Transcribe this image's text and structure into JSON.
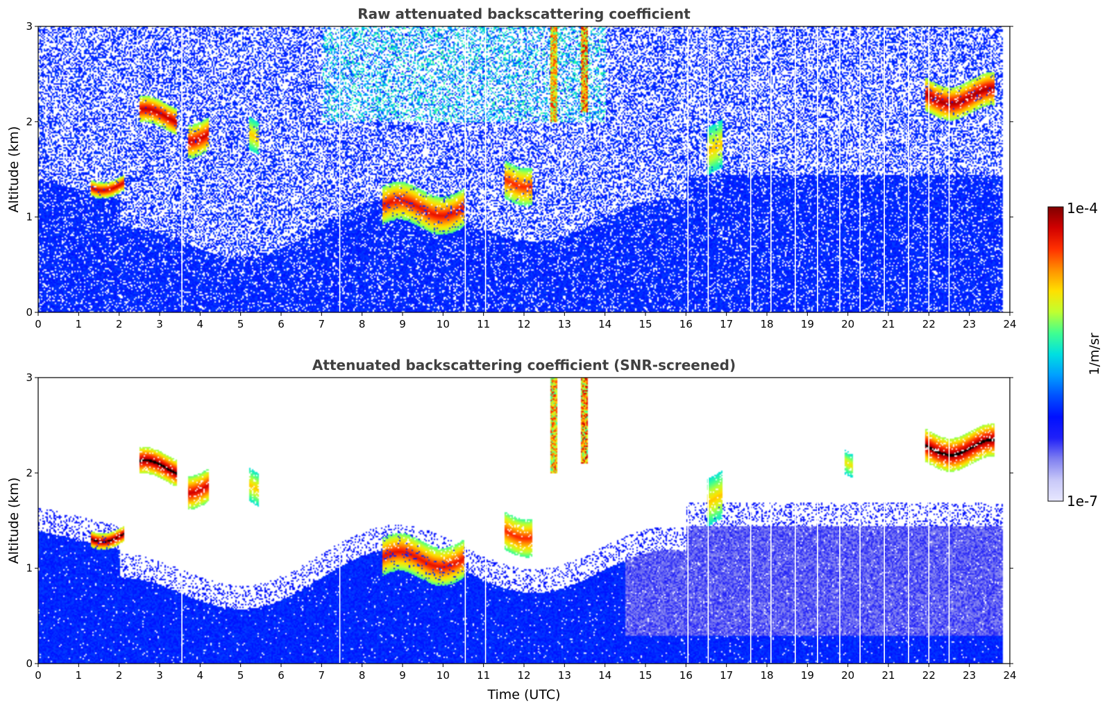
{
  "chart_data": [
    {
      "type": "heatmap",
      "title": "Raw attenuated backscattering coefficient",
      "xlabel": "",
      "ylabel": "Altitude (km)",
      "xlim": [
        0,
        24
      ],
      "ylim": [
        0,
        3
      ],
      "xticks": [
        "0",
        "1",
        "2",
        "3",
        "4",
        "5",
        "6",
        "7",
        "8",
        "9",
        "10",
        "11",
        "12",
        "13",
        "14",
        "15",
        "16",
        "17",
        "18",
        "19",
        "20",
        "21",
        "22",
        "23",
        "24"
      ],
      "yticks": [
        "0",
        "1",
        "2",
        "3"
      ],
      "noise": "high",
      "layers": [
        {
          "t0": 1.3,
          "t1": 2.1,
          "z0": 1.28,
          "z1": 1.45,
          "intensity": 0.9
        },
        {
          "t0": 2.5,
          "t1": 3.4,
          "z0": 1.92,
          "z1": 2.2,
          "intensity": 0.92
        },
        {
          "t0": 3.7,
          "t1": 4.2,
          "z0": 1.7,
          "z1": 2.05,
          "intensity": 0.9
        },
        {
          "t0": 5.2,
          "t1": 5.45,
          "z0": 1.7,
          "z1": 2.05,
          "intensity": 0.6
        },
        {
          "t0": 8.5,
          "t1": 10.5,
          "z0": 0.9,
          "z1": 1.3,
          "intensity": 0.85
        },
        {
          "t0": 11.5,
          "t1": 12.2,
          "z0": 1.2,
          "z1": 1.6,
          "intensity": 0.8
        },
        {
          "t0": 16.5,
          "t1": 16.9,
          "z0": 1.5,
          "z1": 2.0,
          "intensity": 0.6
        },
        {
          "t0": 21.9,
          "t1": 23.6,
          "z0": 2.1,
          "z1": 2.45,
          "intensity": 0.95
        }
      ],
      "plumes": [
        {
          "t0": 12.65,
          "t1": 12.8,
          "z0": 2.0,
          "z1": 3.0,
          "intensity": 0.75
        },
        {
          "t0": 13.4,
          "t1": 13.55,
          "z0": 2.1,
          "z1": 3.0,
          "intensity": 0.9
        }
      ],
      "gaps": [
        3.55,
        7.45,
        10.55,
        11.05,
        16.05,
        16.55,
        17.6,
        18.1,
        18.7,
        19.25,
        19.8,
        20.3,
        20.9,
        21.5,
        22.0,
        22.5
      ]
    },
    {
      "type": "heatmap",
      "title": "Attenuated backscattering coefficient (SNR-screened)",
      "xlabel": "Time (UTC)",
      "ylabel": "Altitude (km)",
      "xlim": [
        0,
        24
      ],
      "ylim": [
        0,
        3
      ],
      "xticks": [
        "0",
        "1",
        "2",
        "3",
        "4",
        "5",
        "6",
        "7",
        "8",
        "9",
        "10",
        "11",
        "12",
        "13",
        "14",
        "15",
        "16",
        "17",
        "18",
        "19",
        "20",
        "21",
        "22",
        "23",
        "24"
      ],
      "yticks": [
        "0",
        "1",
        "2",
        "3"
      ],
      "noise": "screened",
      "layers": [
        {
          "t0": 1.3,
          "t1": 2.1,
          "z0": 1.28,
          "z1": 1.45,
          "intensity": 1.0
        },
        {
          "t0": 2.5,
          "t1": 3.4,
          "z0": 1.92,
          "z1": 2.2,
          "intensity": 1.0
        },
        {
          "t0": 3.7,
          "t1": 4.2,
          "z0": 1.7,
          "z1": 2.05,
          "intensity": 0.9
        },
        {
          "t0": 5.2,
          "t1": 5.45,
          "z0": 1.7,
          "z1": 2.05,
          "intensity": 0.6
        },
        {
          "t0": 8.5,
          "t1": 10.5,
          "z0": 0.9,
          "z1": 1.3,
          "intensity": 0.85
        },
        {
          "t0": 11.5,
          "t1": 12.2,
          "z0": 1.2,
          "z1": 1.6,
          "intensity": 0.8
        },
        {
          "t0": 16.5,
          "t1": 16.9,
          "z0": 1.5,
          "z1": 2.0,
          "intensity": 0.6
        },
        {
          "t0": 19.9,
          "t1": 20.1,
          "z0": 2.0,
          "z1": 2.25,
          "intensity": 0.55
        },
        {
          "t0": 21.9,
          "t1": 23.6,
          "z0": 2.1,
          "z1": 2.45,
          "intensity": 1.0
        }
      ],
      "plumes": [
        {
          "t0": 12.65,
          "t1": 12.8,
          "z0": 2.0,
          "z1": 3.0,
          "intensity": 0.75
        },
        {
          "t0": 13.4,
          "t1": 13.55,
          "z0": 2.1,
          "z1": 3.0,
          "intensity": 0.9
        }
      ],
      "gaps": [
        3.55,
        7.45,
        10.55,
        11.05,
        16.05,
        16.55,
        17.6,
        18.1,
        18.7,
        19.25,
        19.8,
        20.3,
        20.9,
        21.5,
        22.0,
        22.5
      ]
    }
  ],
  "colorbar": {
    "label": "1/m/sr",
    "max_label": "1e-4",
    "min_label": "1e-7",
    "scale": "log",
    "range": [
      1e-07,
      0.0001
    ],
    "colormap": [
      "#e8e8ff",
      "#c8c8f8",
      "#8080f0",
      "#2020f8",
      "#0010ff",
      "#0050ff",
      "#00a0ff",
      "#00e0e0",
      "#40ff90",
      "#c0ff30",
      "#ffe000",
      "#ff9000",
      "#ff3000",
      "#d00000",
      "#800000"
    ]
  }
}
